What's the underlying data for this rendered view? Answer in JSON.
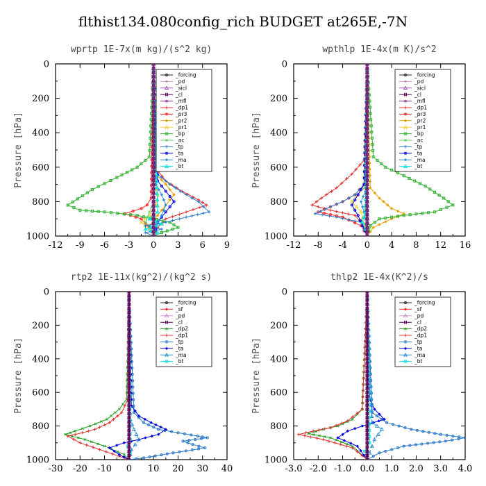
{
  "title": "flthist134.080config_rich  BUDGET at265E,-7N",
  "colors": {
    "_forcing": "#222222",
    "_pd": "#c896c8",
    "_sicl": "#9b59b6",
    "_cl": "#5a0a5a",
    "_mfl": "#7a2a7a",
    "_dp1": "#e03030",
    "_pr3": "#ff2020",
    "_pr2": "#e8a000",
    "_pr1": "#f0d040",
    "_bp": "#30b030",
    "_ac": "#60d060",
    "_tp": "#2878c8",
    "_ta": "#0000e0",
    "_ma": "#3090d0",
    "_bt": "#00e0e0",
    "_sf": "#ff2020",
    "_dp2": "#20a020"
  },
  "chart_data": [
    {
      "type": "line",
      "subtitle": "wprtp   1E-7x(m kg)/(s^2 kg)",
      "ylabel": "Pressure [hPa]",
      "xlim": [
        -12,
        9
      ],
      "ylim": [
        1000,
        0
      ],
      "xticks": [
        "-12",
        "-9",
        "-6",
        "-3",
        "0",
        "3",
        "6",
        "9"
      ],
      "yticks": [
        "0",
        "200",
        "400",
        "600",
        "800",
        "1000"
      ],
      "series": [
        {
          "name": "_forcing",
          "x": [
            0,
            0
          ],
          "y": [
            0,
            1000
          ]
        },
        {
          "name": "_pd",
          "x": [
            0,
            0
          ],
          "y": [
            0,
            1000
          ]
        },
        {
          "name": "_sicl",
          "x": [
            0,
            0
          ],
          "y": [
            0,
            1000
          ]
        },
        {
          "name": "_cl",
          "x": [
            0,
            0
          ],
          "y": [
            0,
            1000
          ]
        },
        {
          "name": "_mfl",
          "x": [
            0,
            0
          ],
          "y": [
            0,
            1000
          ]
        },
        {
          "name": "_dp1",
          "x": [
            0,
            0.2,
            1.5,
            3.5,
            5.5,
            6.5,
            4,
            1.5,
            0.5,
            0
          ],
          "y": [
            0,
            600,
            680,
            740,
            790,
            820,
            860,
            900,
            950,
            1000
          ]
        },
        {
          "name": "_pr3",
          "x": [
            0,
            -0.3,
            -0.8,
            -1.5,
            -2.5,
            -3.5,
            -1.5,
            -0.5,
            0
          ],
          "y": [
            0,
            780,
            820,
            840,
            855,
            870,
            900,
            950,
            1000
          ]
        },
        {
          "name": "_pr2",
          "x": [
            0,
            0.5,
            1.5,
            2.5,
            1.5,
            0.5,
            -0.5,
            0
          ],
          "y": [
            0,
            650,
            700,
            760,
            820,
            880,
            940,
            1000
          ]
        },
        {
          "name": "_pr1",
          "x": [
            0,
            0.2,
            0.5,
            0.3,
            -0.5,
            -1.5,
            -0.5,
            0
          ],
          "y": [
            0,
            700,
            760,
            820,
            880,
            920,
            960,
            1000
          ]
        },
        {
          "name": "_bp",
          "x": [
            0,
            -0.5,
            -2,
            -4.5,
            -7.5,
            -10.5,
            -9,
            -6,
            -2,
            2,
            3,
            1,
            0
          ],
          "y": [
            0,
            540,
            600,
            660,
            730,
            820,
            850,
            860,
            880,
            920,
            950,
            980,
            1000
          ]
        },
        {
          "name": "_ac",
          "x": [
            0,
            0,
            -0.5,
            -1,
            0,
            0
          ],
          "y": [
            0,
            800,
            860,
            920,
            960,
            1000
          ]
        },
        {
          "name": "_tp",
          "x": [
            0,
            0.5,
            2,
            4,
            5.5,
            6.8,
            4,
            1.5,
            -1,
            1,
            -1,
            0
          ],
          "y": [
            0,
            640,
            700,
            760,
            800,
            860,
            890,
            920,
            940,
            960,
            980,
            1000
          ]
        },
        {
          "name": "_ta",
          "x": [
            0,
            0.5,
            1.5,
            2.5,
            1.5,
            0.5,
            0
          ],
          "y": [
            0,
            680,
            740,
            800,
            860,
            920,
            1000
          ]
        },
        {
          "name": "_ma",
          "x": [
            0,
            0.3,
            1,
            1.5,
            1,
            0.3,
            0
          ],
          "y": [
            0,
            700,
            760,
            820,
            880,
            940,
            1000
          ]
        },
        {
          "name": "_bt",
          "x": [
            0,
            0.5,
            -0.5,
            1,
            -1,
            0.5,
            0
          ],
          "y": [
            0,
            860,
            900,
            930,
            960,
            980,
            1000
          ]
        }
      ],
      "legend_entries": [
        "_forcing",
        "_pd",
        "_sicl",
        "_cl",
        "_mfl",
        "_dp1",
        "_pr3",
        "_pr2",
        "_pr1",
        "_bp",
        "_ac",
        "_tp",
        "_ta",
        "_ma",
        "_bt"
      ]
    },
    {
      "type": "line",
      "subtitle": "wpthlp   1E-4x(m K)/s^2",
      "ylabel": "Pressure [hPa]",
      "xlim": [
        -12,
        16
      ],
      "ylim": [
        1000,
        0
      ],
      "xticks": [
        "-12",
        "-8",
        "-4",
        "0",
        "4",
        "8",
        "12",
        "16"
      ],
      "yticks": [
        "0",
        "200",
        "400",
        "600",
        "800",
        "1000"
      ],
      "series": [
        {
          "name": "_forcing",
          "x": [
            0,
            0
          ],
          "y": [
            0,
            1000
          ]
        },
        {
          "name": "_pd",
          "x": [
            0,
            0
          ],
          "y": [
            0,
            1000
          ]
        },
        {
          "name": "_sicl",
          "x": [
            0,
            0
          ],
          "y": [
            0,
            1000
          ]
        },
        {
          "name": "_cl",
          "x": [
            0,
            0
          ],
          "y": [
            0,
            1000
          ]
        },
        {
          "name": "_mfl",
          "x": [
            0,
            0
          ],
          "y": [
            0,
            1000
          ]
        },
        {
          "name": "_dp1",
          "x": [
            0,
            -0.5,
            -2.5,
            -5,
            -7.5,
            -9,
            -6,
            -2,
            -0.5,
            0
          ],
          "y": [
            0,
            560,
            640,
            720,
            780,
            820,
            850,
            880,
            940,
            1000
          ]
        },
        {
          "name": "_pr3",
          "x": [
            0,
            -0.5,
            -2,
            -4,
            -6,
            -8,
            -4,
            -1,
            0
          ],
          "y": [
            0,
            700,
            760,
            800,
            830,
            860,
            890,
            940,
            1000
          ]
        },
        {
          "name": "_pr2",
          "x": [
            0,
            0.5,
            2,
            4,
            6,
            4,
            1,
            0
          ],
          "y": [
            0,
            720,
            780,
            840,
            870,
            900,
            950,
            1000
          ]
        },
        {
          "name": "_pr1",
          "x": [
            0,
            -0.5,
            -1.5,
            -2.5,
            -1,
            0
          ],
          "y": [
            0,
            720,
            760,
            800,
            860,
            1000
          ]
        },
        {
          "name": "_bp",
          "x": [
            0,
            1,
            3,
            6,
            9.5,
            12.5,
            14,
            11,
            6,
            2,
            0.5,
            0
          ],
          "y": [
            0,
            540,
            600,
            650,
            710,
            780,
            820,
            860,
            880,
            900,
            940,
            1000
          ]
        },
        {
          "name": "_ac",
          "x": [
            0,
            -0.3,
            -0.5,
            0,
            0.5,
            0
          ],
          "y": [
            0,
            820,
            860,
            900,
            950,
            1000
          ]
        },
        {
          "name": "_tp",
          "x": [
            0,
            -0.5,
            -2,
            -4,
            -6,
            -8.5,
            -5,
            -1,
            -0.5,
            0
          ],
          "y": [
            0,
            700,
            760,
            800,
            830,
            870,
            890,
            920,
            960,
            1000
          ]
        },
        {
          "name": "_ta",
          "x": [
            0,
            -0.5,
            -1.5,
            -2.5,
            -1.5,
            0
          ],
          "y": [
            0,
            700,
            760,
            820,
            880,
            1000
          ]
        },
        {
          "name": "_ma",
          "x": [
            0,
            -0.3,
            -1,
            -0.5,
            0
          ],
          "y": [
            0,
            740,
            800,
            860,
            1000
          ]
        },
        {
          "name": "_bt",
          "x": [
            0,
            -0.3,
            -0.8,
            -0.3,
            0
          ],
          "y": [
            0,
            860,
            920,
            960,
            1000
          ]
        }
      ],
      "legend_entries": [
        "_forcing",
        "_pd",
        "_sicl",
        "_cl",
        "_mfl",
        "_dp1",
        "_pr3",
        "_pr2",
        "_pr1",
        "_bp",
        "_ac",
        "_tp",
        "_ta",
        "_ma",
        "_bt"
      ]
    },
    {
      "type": "line",
      "subtitle": "rtp2   1E-11x(kg^2)/(kg^2 s)",
      "ylabel": "Pressure [hPa]",
      "xlim": [
        -30,
        40
      ],
      "ylim": [
        1000,
        0
      ],
      "xticks": [
        "-30",
        "-20",
        "-10",
        "0",
        "10",
        "20",
        "30",
        "40"
      ],
      "yticks": [
        "0",
        "200",
        "400",
        "600",
        "800",
        "1000"
      ],
      "series": [
        {
          "name": "_forcing",
          "x": [
            0,
            0
          ],
          "y": [
            0,
            1000
          ]
        },
        {
          "name": "_sf",
          "x": [
            0,
            0
          ],
          "y": [
            0,
            1000
          ]
        },
        {
          "name": "_pd",
          "x": [
            0,
            0
          ],
          "y": [
            0,
            1000
          ]
        },
        {
          "name": "_cl",
          "x": [
            0,
            0
          ],
          "y": [
            0,
            1000
          ]
        },
        {
          "name": "_dp2",
          "x": [
            0,
            -1,
            -4,
            -9,
            -16,
            -22,
            -26,
            -18,
            -10,
            -2,
            0
          ],
          "y": [
            0,
            640,
            700,
            760,
            800,
            830,
            850,
            880,
            920,
            970,
            1000
          ]
        },
        {
          "name": "_dp1",
          "x": [
            0,
            -0.5,
            -3,
            -8,
            -14,
            -19,
            -25,
            -20,
            -12,
            -4,
            0
          ],
          "y": [
            0,
            640,
            720,
            780,
            820,
            840,
            860,
            900,
            940,
            980,
            1000
          ]
        },
        {
          "name": "_tp",
          "x": [
            0,
            2,
            6,
            12,
            20,
            28,
            32,
            22,
            26,
            31,
            18,
            6,
            0
          ],
          "y": [
            0,
            720,
            780,
            820,
            840,
            860,
            870,
            890,
            910,
            930,
            960,
            990,
            1000
          ]
        },
        {
          "name": "_ta",
          "x": [
            0,
            1,
            4,
            9,
            15,
            12,
            4,
            -2,
            -8,
            -4,
            0
          ],
          "y": [
            0,
            680,
            740,
            780,
            820,
            850,
            880,
            900,
            930,
            970,
            1000
          ]
        },
        {
          "name": "_ma",
          "x": [
            0,
            0.5,
            2,
            4,
            1,
            0
          ],
          "y": [
            0,
            760,
            820,
            880,
            940,
            1000
          ]
        },
        {
          "name": "_bt",
          "x": [
            0,
            0.5,
            -0.5,
            0.5,
            0
          ],
          "y": [
            0,
            880,
            920,
            960,
            1000
          ]
        }
      ],
      "legend_entries": [
        "_forcing",
        "_sf",
        "_pd",
        "_cl",
        "_dp2",
        "_dp1",
        "_tp",
        "_ta",
        "_ma",
        "_bt"
      ]
    },
    {
      "type": "line",
      "subtitle": "thlp2   1E-4x(K^2)/s",
      "ylabel": "Pressure [hPa]",
      "xlim": [
        -3.0,
        4.0
      ],
      "ylim": [
        1000,
        0
      ],
      "xticks": [
        "-3.0",
        "-2.0",
        "-1.0",
        "0.0",
        "1.0",
        "2.0",
        "3.0",
        "4.0"
      ],
      "yticks": [
        "0",
        "200",
        "400",
        "600",
        "800",
        "1000"
      ],
      "series": [
        {
          "name": "_forcing",
          "x": [
            0,
            0
          ],
          "y": [
            0,
            1000
          ]
        },
        {
          "name": "_sf",
          "x": [
            0,
            0
          ],
          "y": [
            0,
            1000
          ]
        },
        {
          "name": "_pd",
          "x": [
            0,
            0
          ],
          "y": [
            0,
            1000
          ]
        },
        {
          "name": "_cl",
          "x": [
            0,
            0
          ],
          "y": [
            0,
            1000
          ]
        },
        {
          "name": "_dp2",
          "x": [
            0,
            -0.2,
            -0.6,
            -1.2,
            -1.8,
            -2.4,
            -1.5,
            -0.6,
            0
          ],
          "y": [
            0,
            700,
            760,
            800,
            820,
            845,
            870,
            920,
            1000
          ]
        },
        {
          "name": "_dp1",
          "x": [
            0,
            -0.2,
            -0.8,
            -1.5,
            -2.2,
            -2.8,
            -1.8,
            -0.6,
            0
          ],
          "y": [
            0,
            700,
            770,
            810,
            830,
            850,
            880,
            930,
            1000
          ]
        },
        {
          "name": "_tp",
          "x": [
            0,
            0.2,
            0.8,
            1.8,
            3,
            4,
            3.2,
            1.5,
            0.5,
            0
          ],
          "y": [
            0,
            720,
            780,
            820,
            850,
            870,
            890,
            920,
            960,
            1000
          ]
        },
        {
          "name": "_ta",
          "x": [
            0,
            0.1,
            0.3,
            0.7,
            -0.2,
            -0.8,
            -1.2,
            -0.4,
            0
          ],
          "y": [
            0,
            640,
            700,
            760,
            800,
            830,
            870,
            920,
            1000
          ]
        },
        {
          "name": "_ma",
          "x": [
            0,
            0.2,
            0.6,
            0.3,
            0
          ],
          "y": [
            0,
            780,
            820,
            880,
            1000
          ]
        },
        {
          "name": "_bt",
          "x": [
            0,
            0.1,
            -0.1,
            0
          ],
          "y": [
            0,
            900,
            950,
            1000
          ]
        }
      ],
      "legend_entries": [
        "_forcing",
        "_sf",
        "_pd",
        "_cl",
        "_dp2",
        "_dp1",
        "_tp",
        "_ta",
        "_ma",
        "_bt"
      ]
    }
  ]
}
